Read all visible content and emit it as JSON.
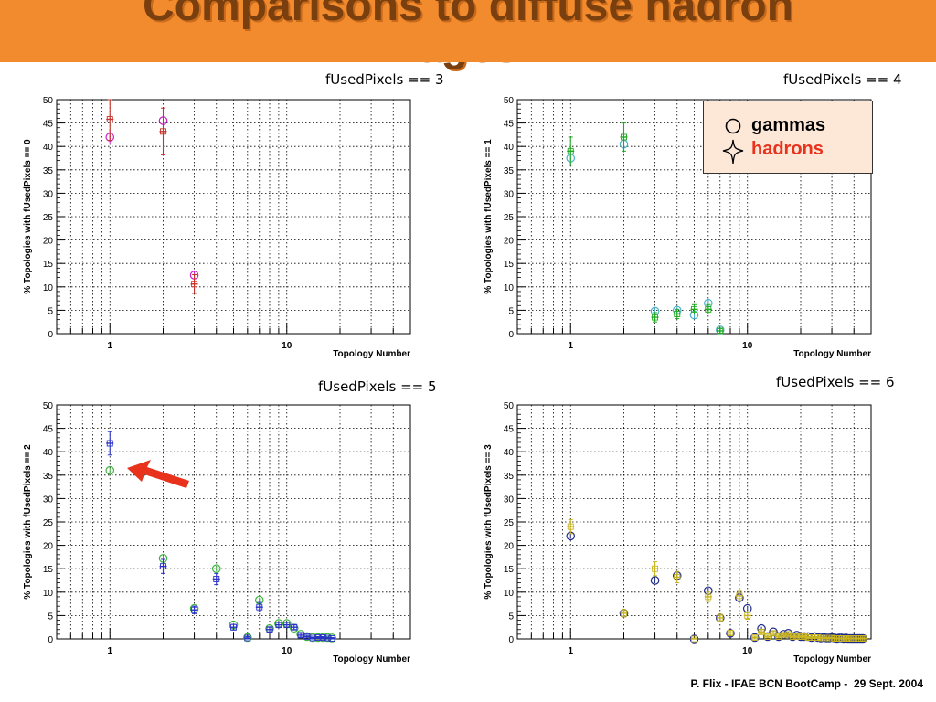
{
  "slide": {
    "title": "Comparisons to diffuse hadron images IV",
    "title_line1": "Comparisons to diffuse hadron",
    "title_line2": "images IV",
    "footer": "P. Flix - IFAE BCN BootCamp -  29 Sept. 2004",
    "colors": {
      "title_bar": "#f28a2e",
      "title_text": "#7a3f0e",
      "arrow": "#e8321c"
    }
  },
  "legend": {
    "gammas_label": "gammas",
    "hadrons_label": "hadrons",
    "gammas_symbol": "open-circle-icon",
    "hadrons_symbol": "open-cross-icon",
    "gammas_color": "#000000",
    "hadrons_color": "#e8321c"
  },
  "chart_data": [
    {
      "type": "scatter",
      "title": "fUsedPixels == 3",
      "xlabel": "Topology Number",
      "ylabel": "% Topologies with fUsedPixels == 0",
      "xscale": "log",
      "xlim": [
        0.5,
        50
      ],
      "ylim": [
        0,
        50
      ],
      "yticks": [
        0,
        5,
        10,
        15,
        20,
        25,
        30,
        35,
        40,
        45,
        50
      ],
      "xtick_labels": [
        "1",
        "10"
      ],
      "grid": true,
      "series": [
        {
          "role": "gammas",
          "marker": "circle",
          "color": "#c81ec8",
          "x": [
            1,
            2,
            3
          ],
          "y": [
            42,
            45.5,
            12.5
          ],
          "err": [
            1.5,
            2,
            1
          ]
        },
        {
          "role": "hadrons",
          "marker": "cross",
          "color": "#c8322a",
          "x": [
            1,
            2,
            3
          ],
          "y": [
            45.8,
            43.2,
            10.6
          ],
          "err": [
            4.5,
            5,
            2
          ]
        }
      ]
    },
    {
      "type": "scatter",
      "title": "fUsedPixels == 4",
      "xlabel": "Topology Number",
      "ylabel": "% Topologies with fUsedPixels == 1",
      "xscale": "log",
      "xlim": [
        0.5,
        50
      ],
      "ylim": [
        0,
        50
      ],
      "yticks": [
        0,
        5,
        10,
        15,
        20,
        25,
        30,
        35,
        40,
        45,
        50
      ],
      "xtick_labels": [
        "1",
        "10"
      ],
      "grid": true,
      "series": [
        {
          "role": "gammas",
          "marker": "circle",
          "color": "#4ab0c8",
          "x": [
            1,
            2,
            3,
            4,
            5,
            6,
            7
          ],
          "y": [
            37.5,
            40.5,
            4.8,
            5,
            4,
            6.5,
            0.8
          ],
          "err": [
            1.5,
            1.5,
            0.8,
            0.8,
            0.8,
            0.8,
            0.4
          ]
        },
        {
          "role": "hadrons",
          "marker": "cross",
          "color": "#1eaa1e",
          "x": [
            1,
            2,
            3,
            4,
            5,
            6,
            7
          ],
          "y": [
            39,
            42,
            3.5,
            4.2,
            5.2,
            5.2,
            0.6
          ],
          "err": [
            3,
            3,
            1,
            1,
            1,
            1,
            0.5
          ]
        }
      ]
    },
    {
      "type": "scatter",
      "title": "fUsedPixels == 5",
      "xlabel": "Topology Number",
      "ylabel": "% Topologies with fUsedPixels == 2",
      "xscale": "log",
      "xlim": [
        0.5,
        50
      ],
      "ylim": [
        0,
        50
      ],
      "yticks": [
        0,
        5,
        10,
        15,
        20,
        25,
        30,
        35,
        40,
        45,
        50
      ],
      "xtick_labels": [
        "1",
        "10"
      ],
      "grid": true,
      "series": [
        {
          "role": "gammas",
          "marker": "circle",
          "color": "#3cb43c",
          "x": [
            1,
            2,
            3,
            4,
            5,
            6,
            7,
            8,
            9,
            10,
            11,
            12,
            13,
            14,
            15,
            16,
            17,
            18
          ],
          "y": [
            36,
            17.2,
            6.5,
            15,
            3,
            0.3,
            8.3,
            2.2,
            3.3,
            3.3,
            2.3,
            1,
            0.5,
            0.3,
            0.3,
            0.3,
            0.3,
            0.2
          ],
          "err": [
            0.5,
            0.6,
            0.5,
            0.6,
            0.4,
            0.2,
            0.6,
            0.4,
            0.4,
            0.4,
            0.4,
            0.3,
            0.2,
            0.2,
            0.2,
            0.2,
            0.2,
            0.2
          ]
        },
        {
          "role": "hadrons",
          "marker": "cross",
          "color": "#2a32c8",
          "x": [
            1,
            2,
            3,
            4,
            5,
            6,
            7,
            8,
            9,
            10,
            11,
            12,
            13,
            14,
            15,
            16,
            17,
            18
          ],
          "y": [
            41.8,
            15.5,
            6.2,
            12.8,
            2.5,
            0.2,
            6.8,
            2,
            3,
            3,
            2.5,
            0.8,
            0.5,
            0.2,
            0.3,
            0.3,
            0.2,
            0.1
          ],
          "err": [
            2.5,
            1.5,
            0.8,
            1.2,
            0.6,
            0.3,
            1,
            0.5,
            0.5,
            0.5,
            0.5,
            0.4,
            0.3,
            0.2,
            0.2,
            0.2,
            0.2,
            0.2
          ]
        }
      ]
    },
    {
      "type": "scatter",
      "title": "fUsedPixels == 6",
      "xlabel": "Topology Number",
      "ylabel": "% Topologies with fUsedPixels == 3",
      "xscale": "log",
      "xlim": [
        0.5,
        50
      ],
      "ylim": [
        0,
        50
      ],
      "yticks": [
        0,
        5,
        10,
        15,
        20,
        25,
        30,
        35,
        40,
        45,
        50
      ],
      "xtick_labels": [
        "1",
        "10"
      ],
      "grid": true,
      "series": [
        {
          "role": "gammas",
          "marker": "circle",
          "color": "#1e2a8c",
          "x": [
            1,
            2,
            3,
            4,
            5,
            6,
            7,
            8,
            9,
            10,
            11,
            12,
            13,
            14,
            15,
            16,
            17,
            18,
            19,
            20,
            21,
            22,
            23,
            24,
            25,
            26,
            27,
            28,
            29,
            30,
            31,
            32,
            33,
            34,
            35,
            36,
            37,
            38,
            39,
            40,
            41,
            42,
            43,
            44,
            45
          ],
          "y": [
            22,
            5.5,
            12.5,
            13.5,
            0,
            10.3,
            4.5,
            1.2,
            8.8,
            6.5,
            0.3,
            2.2,
            0.5,
            1.5,
            0.5,
            1,
            1.2,
            0.5,
            0.8,
            0.5,
            0.5,
            0.5,
            0.3,
            0.5,
            0.3,
            0.2,
            0.3,
            0.2,
            0.2,
            0.3,
            0.2,
            0.1,
            0.2,
            0.2,
            0.1,
            0.2,
            0.1,
            0.1,
            0.1,
            0.1,
            0.1,
            0.1,
            0.1,
            0.1,
            0.1
          ],
          "err": [
            0.6,
            0.5,
            0.6,
            0.6,
            0.1,
            0.6,
            0.5,
            0.3,
            0.6,
            0.5,
            0.2,
            0.4,
            0.2,
            0.3,
            0.2,
            0.3,
            0.3,
            0.2,
            0.2,
            0.2,
            0.2,
            0.2,
            0.2,
            0.2,
            0.2,
            0.1,
            0.2,
            0.1,
            0.1,
            0.2,
            0.1,
            0.1,
            0.1,
            0.1,
            0.1,
            0.1,
            0.1,
            0.1,
            0.1,
            0.1,
            0.1,
            0.1,
            0.1,
            0.1,
            0.1
          ]
        },
        {
          "role": "hadrons",
          "marker": "cross",
          "color": "#c8b41e",
          "x": [
            1,
            2,
            3,
            4,
            5,
            6,
            7,
            8,
            9,
            10,
            11,
            12,
            13,
            14,
            15,
            16,
            17,
            18,
            19,
            20,
            21,
            22,
            23,
            24,
            25,
            26,
            27,
            28,
            29,
            30,
            31,
            32,
            33,
            34,
            35,
            36,
            37,
            38,
            39,
            40,
            41,
            42,
            43,
            44,
            45
          ],
          "y": [
            24,
            5.5,
            15,
            13.2,
            0,
            9,
            4.5,
            1.3,
            9.2,
            5,
            0.3,
            1.5,
            0.5,
            1.2,
            0.5,
            0.8,
            1,
            0.5,
            0.5,
            0.5,
            0.5,
            0.3,
            0.3,
            0.3,
            0.3,
            0.2,
            0.2,
            0.2,
            0.2,
            0.2,
            0.1,
            0.1,
            0.1,
            0.1,
            0.1,
            0.1,
            0.1,
            0.1,
            0.1,
            0.1,
            0.1,
            0.1,
            0.1,
            0.1,
            0.1
          ],
          "err": [
            1.5,
            0.8,
            1.5,
            1.2,
            0.2,
            1,
            0.8,
            0.5,
            1,
            0.8,
            0.3,
            0.5,
            0.3,
            0.4,
            0.3,
            0.3,
            0.3,
            0.3,
            0.3,
            0.3,
            0.3,
            0.2,
            0.2,
            0.2,
            0.2,
            0.2,
            0.2,
            0.2,
            0.2,
            0.2,
            0.1,
            0.1,
            0.1,
            0.1,
            0.1,
            0.1,
            0.1,
            0.1,
            0.1,
            0.1,
            0.1,
            0.1,
            0.1,
            0.1,
            0.1
          ]
        }
      ]
    }
  ]
}
